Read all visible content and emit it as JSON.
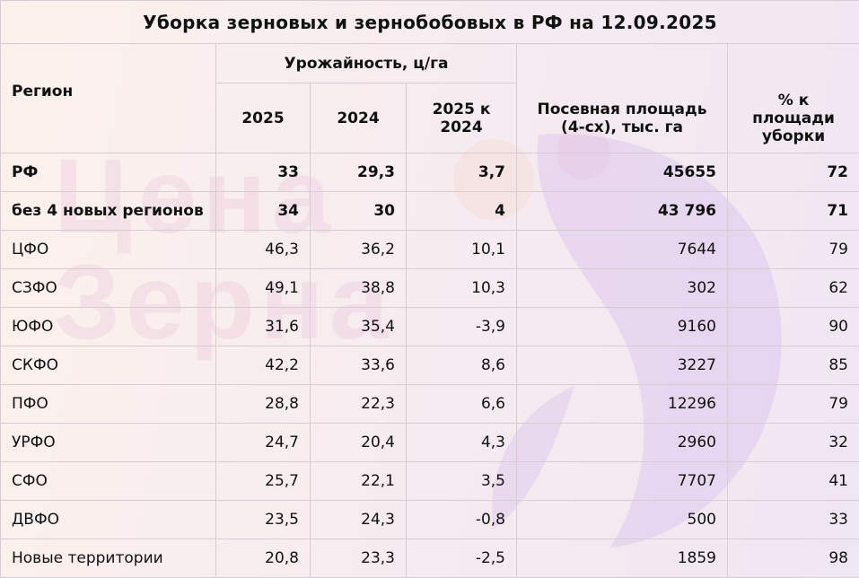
{
  "title": "Уборка зерновых и зернобобовых в РФ на 12.09.2025",
  "watermark": "Цена Зерна",
  "colors": {
    "background_left": "#fcf1ec",
    "background_right": "#efe6f3",
    "grid": "#d6ccd4",
    "watermark": "#dc96c8"
  },
  "headers": {
    "region": "Регион",
    "yield_group": "Урожайность, ц/га",
    "y2025": "2025",
    "y2024": "2024",
    "diff": "2025 к 2024",
    "area": "Посевная площадь (4-сх), тыс. га",
    "pct": "% к площади уборки"
  },
  "chart_data": {
    "type": "table",
    "title": "Уборка зерновых и зернобобовых в РФ на 12.09.2025",
    "columns": [
      "Регион",
      "2025",
      "2024",
      "2025 к 2024",
      "Посевная площадь (4-сх), тыс. га",
      "% к площади уборки"
    ],
    "rows": [
      {
        "region": "РФ",
        "y2025": "33",
        "y2024": "29,3",
        "diff": "3,7",
        "area": "45655",
        "pct": "72",
        "bold": true
      },
      {
        "region": "без 4 новых регионов",
        "y2025": "34",
        "y2024": "30",
        "diff": "4",
        "area": "43 796",
        "pct": "71",
        "bold": true
      },
      {
        "region": "ЦФО",
        "y2025": "46,3",
        "y2024": "36,2",
        "diff": "10,1",
        "area": "7644",
        "pct": "79"
      },
      {
        "region": "СЗФО",
        "y2025": "49,1",
        "y2024": "38,8",
        "diff": "10,3",
        "area": "302",
        "pct": "62"
      },
      {
        "region": "ЮФО",
        "y2025": "31,6",
        "y2024": "35,4",
        "diff": "-3,9",
        "area": "9160",
        "pct": "90"
      },
      {
        "region": "СКФО",
        "y2025": "42,2",
        "y2024": "33,6",
        "diff": "8,6",
        "area": "3227",
        "pct": "85"
      },
      {
        "region": "ПФО",
        "y2025": "28,8",
        "y2024": "22,3",
        "diff": "6,6",
        "area": "12296",
        "pct": "79"
      },
      {
        "region": "УРФО",
        "y2025": "24,7",
        "y2024": "20,4",
        "diff": "4,3",
        "area": "2960",
        "pct": "32"
      },
      {
        "region": "СФО",
        "y2025": "25,7",
        "y2024": "22,1",
        "diff": "3,5",
        "area": "7707",
        "pct": "41"
      },
      {
        "region": "ДВФО",
        "y2025": "23,5",
        "y2024": "24,3",
        "diff": "-0,8",
        "area": "500",
        "pct": "33"
      },
      {
        "region": "Новые территории",
        "y2025": "20,8",
        "y2024": "23,3",
        "diff": "-2,5",
        "area": "1859",
        "pct": "98"
      }
    ]
  }
}
